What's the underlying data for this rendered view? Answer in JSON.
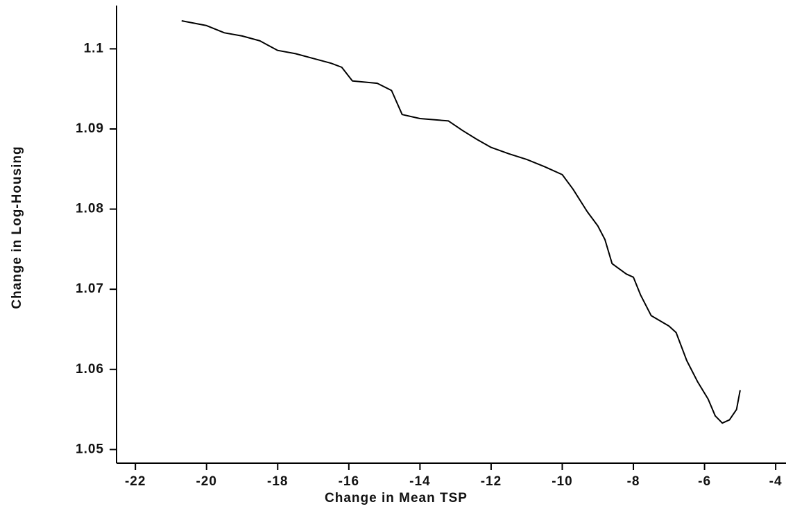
{
  "chart_data": {
    "type": "line",
    "x_label": "Change in Mean TSP",
    "y_label": "Change in Log-Housing",
    "xlim": [
      -22.53,
      -3.71
    ],
    "ylim": [
      1.0483,
      1.1054
    ],
    "xticks": [
      -22,
      -20,
      -18,
      -16,
      -14,
      -12,
      -10,
      -8,
      -6,
      -4
    ],
    "yticks": [
      1.05,
      1.06,
      1.07,
      1.08,
      1.09,
      1.1
    ],
    "color": "#000000",
    "x": [
      -20.7,
      -20,
      -19.5,
      -19,
      -18.5,
      -18,
      -17.5,
      -17,
      -16.5,
      -16.2,
      -15.9,
      -15.2,
      -14.8,
      -14.5,
      -14,
      -13.2,
      -12.8,
      -12.4,
      -12,
      -11.5,
      -11,
      -10.5,
      -10,
      -9.7,
      -9.3,
      -9,
      -8.8,
      -8.6,
      -8.2,
      -8,
      -7.8,
      -7.5,
      -7,
      -6.8,
      -6.5,
      -6.2,
      -5.9,
      -5.7,
      -5.5,
      -5.3,
      -5.1,
      -5
    ],
    "values": [
      1.1035,
      1.1029,
      1.102,
      1.1016,
      1.101,
      1.0998,
      1.0994,
      1.0988,
      1.0982,
      1.0977,
      1.096,
      1.0957,
      1.0948,
      1.0918,
      1.0913,
      1.091,
      1.0898,
      1.0887,
      1.0877,
      1.0869,
      1.0862,
      1.0853,
      1.0843,
      1.0825,
      1.0797,
      1.0779,
      1.0762,
      1.0732,
      1.0719,
      1.0715,
      1.0693,
      1.0667,
      1.0654,
      1.0646,
      1.0611,
      1.0585,
      1.0563,
      1.0542,
      1.0533,
      1.0537,
      1.055,
      1.0574
    ]
  }
}
